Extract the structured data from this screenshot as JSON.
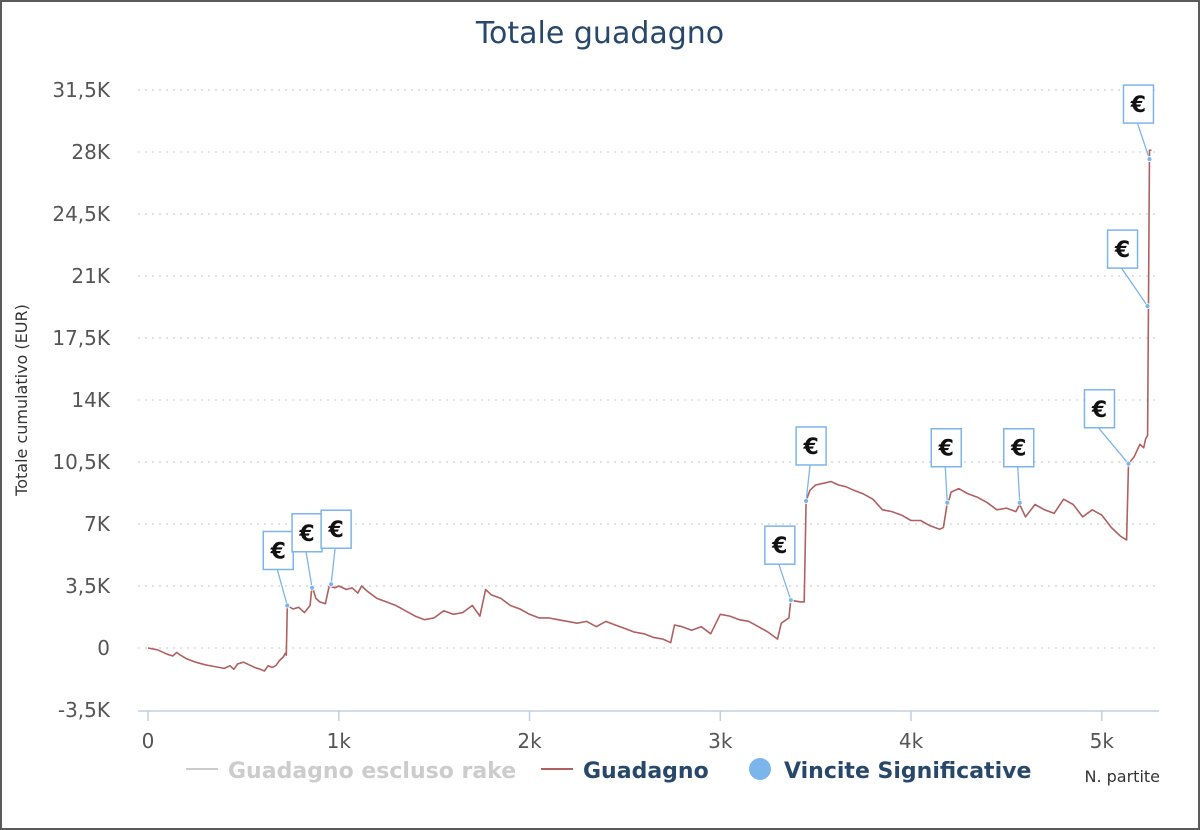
{
  "chart_data": {
    "type": "line",
    "title": "Totale guadagno",
    "ylabel": "Totale cumulativo (EUR)",
    "xlabel": "N. partite",
    "xlim": [
      0,
      5300
    ],
    "ylim": [
      -3500,
      31500
    ],
    "xticks": [
      0,
      1000,
      2000,
      3000,
      4000,
      5000
    ],
    "xtick_labels": [
      "0",
      "1k",
      "2k",
      "3k",
      "4k",
      "5k"
    ],
    "yticks": [
      -3500,
      0,
      3500,
      7000,
      10500,
      14000,
      17500,
      21000,
      24500,
      28000,
      31500
    ],
    "ytick_labels": [
      "-3,5K",
      "0",
      "3,5K",
      "7K",
      "10,5K",
      "14K",
      "17,5K",
      "21K",
      "24,5K",
      "28K",
      "31,5K"
    ],
    "grid": "horizontal dotted",
    "legend": {
      "position": "bottom",
      "items": [
        {
          "label": "Guadagno escluso rake",
          "color": "#cccccc",
          "marker": "line",
          "disabled": true
        },
        {
          "label": "Guadagno",
          "color": "#b06060",
          "marker": "line",
          "disabled": false
        },
        {
          "label": "Vincite Significative",
          "color": "#7cb5ec",
          "marker": "circle",
          "disabled": false
        }
      ]
    },
    "series": [
      {
        "name": "Guadagno",
        "color": "#b06060",
        "points": [
          [
            0,
            0
          ],
          [
            50,
            -100
          ],
          [
            100,
            -350
          ],
          [
            130,
            -450
          ],
          [
            150,
            -250
          ],
          [
            170,
            -400
          ],
          [
            200,
            -600
          ],
          [
            250,
            -800
          ],
          [
            300,
            -950
          ],
          [
            350,
            -1050
          ],
          [
            400,
            -1150
          ],
          [
            430,
            -1000
          ],
          [
            450,
            -1200
          ],
          [
            470,
            -900
          ],
          [
            500,
            -800
          ],
          [
            540,
            -1000
          ],
          [
            560,
            -1100
          ],
          [
            590,
            -1200
          ],
          [
            610,
            -1300
          ],
          [
            630,
            -1000
          ],
          [
            650,
            -1100
          ],
          [
            670,
            -1000
          ],
          [
            690,
            -700
          ],
          [
            710,
            -500
          ],
          [
            720,
            -300
          ],
          [
            725,
            -400
          ],
          [
            730,
            2400
          ],
          [
            760,
            2200
          ],
          [
            790,
            2300
          ],
          [
            820,
            2000
          ],
          [
            850,
            2400
          ],
          [
            860,
            3500
          ],
          [
            880,
            2800
          ],
          [
            900,
            2600
          ],
          [
            930,
            2500
          ],
          [
            950,
            3500
          ],
          [
            980,
            3400
          ],
          [
            1000,
            3500
          ],
          [
            1040,
            3300
          ],
          [
            1070,
            3400
          ],
          [
            1100,
            3100
          ],
          [
            1120,
            3500
          ],
          [
            1150,
            3200
          ],
          [
            1200,
            2800
          ],
          [
            1250,
            2600
          ],
          [
            1300,
            2400
          ],
          [
            1350,
            2100
          ],
          [
            1400,
            1800
          ],
          [
            1450,
            1600
          ],
          [
            1500,
            1700
          ],
          [
            1550,
            2100
          ],
          [
            1600,
            1900
          ],
          [
            1650,
            2000
          ],
          [
            1700,
            2400
          ],
          [
            1740,
            1800
          ],
          [
            1770,
            3300
          ],
          [
            1800,
            3000
          ],
          [
            1850,
            2800
          ],
          [
            1900,
            2400
          ],
          [
            1950,
            2200
          ],
          [
            2000,
            1900
          ],
          [
            2050,
            1700
          ],
          [
            2100,
            1700
          ],
          [
            2150,
            1600
          ],
          [
            2200,
            1500
          ],
          [
            2250,
            1400
          ],
          [
            2300,
            1500
          ],
          [
            2350,
            1200
          ],
          [
            2400,
            1500
          ],
          [
            2450,
            1300
          ],
          [
            2500,
            1100
          ],
          [
            2550,
            900
          ],
          [
            2600,
            800
          ],
          [
            2650,
            600
          ],
          [
            2700,
            500
          ],
          [
            2740,
            300
          ],
          [
            2760,
            1300
          ],
          [
            2800,
            1200
          ],
          [
            2850,
            1000
          ],
          [
            2900,
            1200
          ],
          [
            2950,
            800
          ],
          [
            3000,
            1900
          ],
          [
            3050,
            1800
          ],
          [
            3100,
            1600
          ],
          [
            3150,
            1500
          ],
          [
            3200,
            1200
          ],
          [
            3250,
            900
          ],
          [
            3300,
            500
          ],
          [
            3320,
            1400
          ],
          [
            3360,
            1700
          ],
          [
            3370,
            2700
          ],
          [
            3420,
            2600
          ],
          [
            3440,
            2600
          ],
          [
            3450,
            8300
          ],
          [
            3470,
            8900
          ],
          [
            3500,
            9200
          ],
          [
            3540,
            9300
          ],
          [
            3580,
            9400
          ],
          [
            3620,
            9200
          ],
          [
            3660,
            9100
          ],
          [
            3700,
            8900
          ],
          [
            3750,
            8700
          ],
          [
            3800,
            8400
          ],
          [
            3850,
            7800
          ],
          [
            3900,
            7700
          ],
          [
            3950,
            7500
          ],
          [
            4000,
            7200
          ],
          [
            4050,
            7200
          ],
          [
            4100,
            6900
          ],
          [
            4150,
            6700
          ],
          [
            4170,
            6800
          ],
          [
            4190,
            8200
          ],
          [
            4200,
            8400
          ],
          [
            4210,
            8800
          ],
          [
            4250,
            9000
          ],
          [
            4300,
            8700
          ],
          [
            4350,
            8500
          ],
          [
            4400,
            8200
          ],
          [
            4450,
            7800
          ],
          [
            4500,
            7900
          ],
          [
            4550,
            7700
          ],
          [
            4570,
            8100
          ],
          [
            4600,
            7400
          ],
          [
            4650,
            8100
          ],
          [
            4700,
            7800
          ],
          [
            4750,
            7600
          ],
          [
            4800,
            8400
          ],
          [
            4850,
            8100
          ],
          [
            4900,
            7400
          ],
          [
            4950,
            7800
          ],
          [
            5000,
            7500
          ],
          [
            5050,
            6800
          ],
          [
            5100,
            6300
          ],
          [
            5130,
            6100
          ],
          [
            5140,
            10400
          ],
          [
            5170,
            10800
          ],
          [
            5200,
            11500
          ],
          [
            5220,
            11300
          ],
          [
            5230,
            11800
          ],
          [
            5240,
            12000
          ],
          [
            5250,
            28100
          ],
          [
            5260,
            28100
          ]
        ]
      },
      {
        "name": "Vincite Significative",
        "color": "#7cb5ec",
        "points": [
          [
            730,
            2400
          ],
          [
            860,
            3400
          ],
          [
            960,
            3600
          ],
          [
            3370,
            2700
          ],
          [
            3450,
            8300
          ],
          [
            4190,
            8200
          ],
          [
            4570,
            8200
          ],
          [
            5140,
            10400
          ],
          [
            5240,
            19300
          ],
          [
            5250,
            27600
          ]
        ],
        "flag_text": "€",
        "flag_offsets": [
          [
            -10,
            -24
          ],
          [
            -6,
            -24
          ],
          [
            4,
            -24
          ],
          [
            -12,
            -24
          ],
          [
            4,
            -24
          ],
          [
            -2,
            -24
          ],
          [
            -2,
            -24
          ],
          [
            -30,
            -24
          ],
          [
            -26,
            -26
          ],
          [
            -12,
            -24
          ]
        ]
      }
    ]
  }
}
